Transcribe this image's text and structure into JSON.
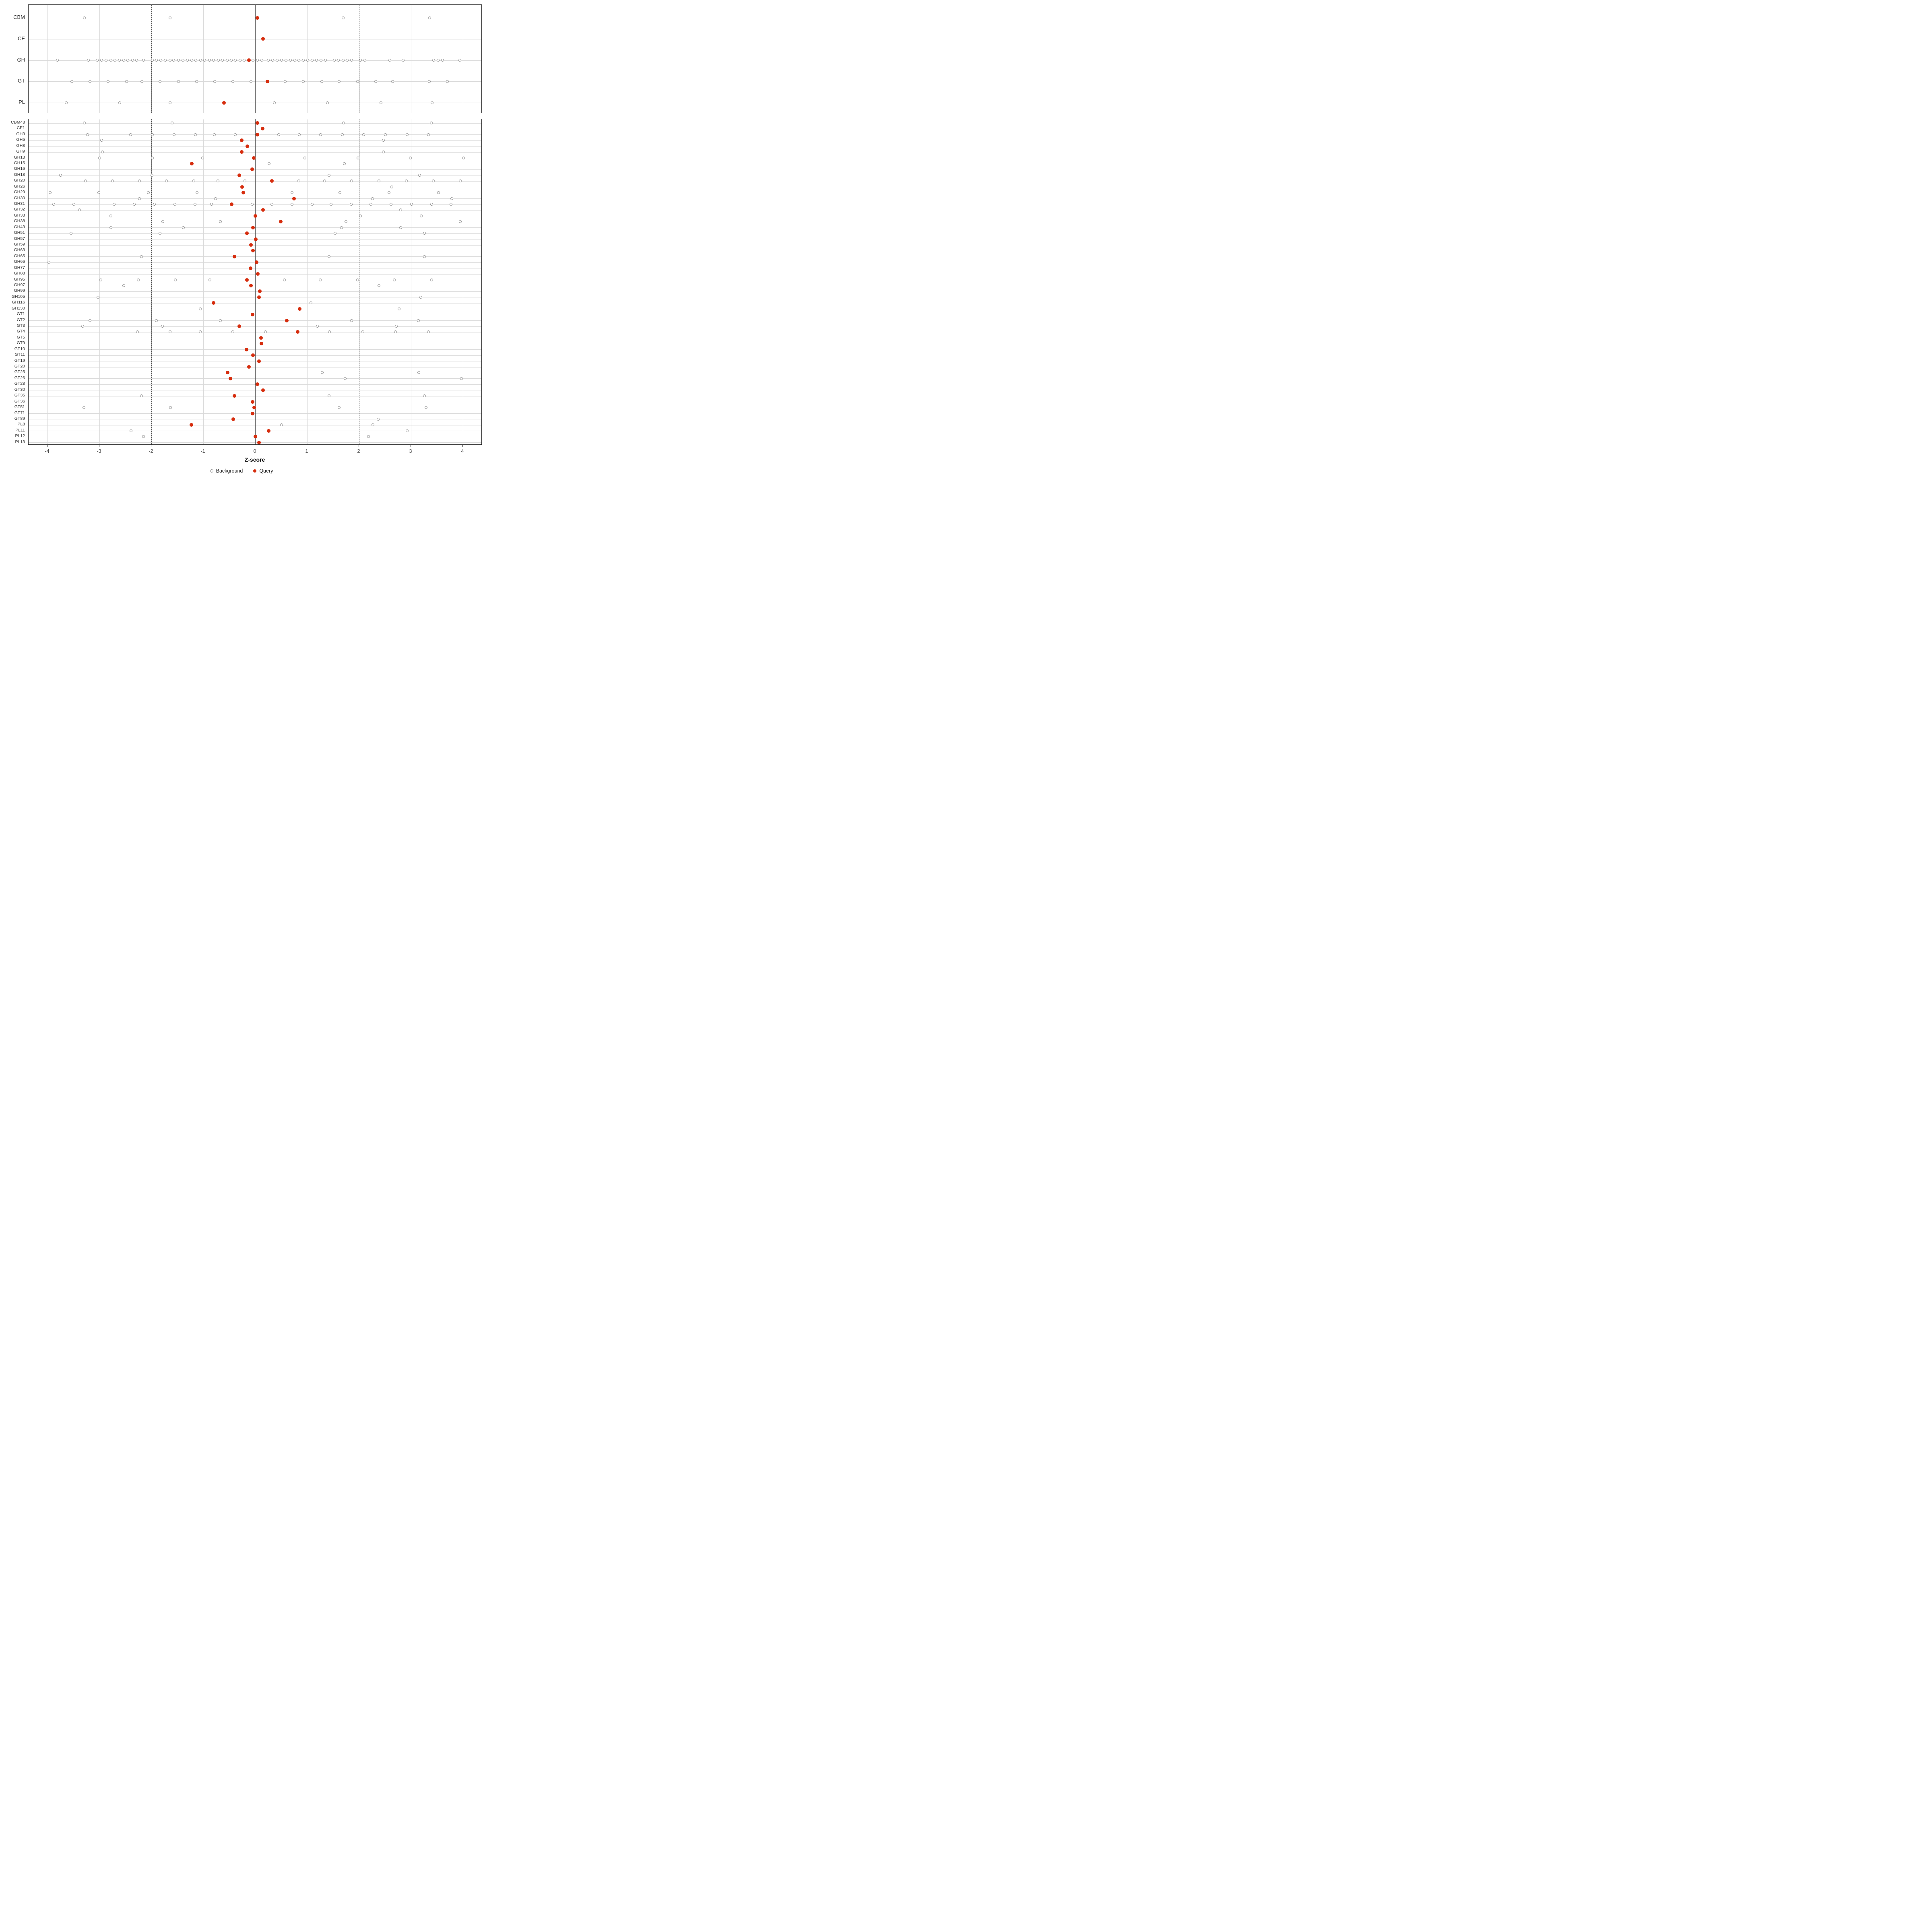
{
  "chart_data": {
    "type": "scatter",
    "title": "",
    "xlabel": "Z-score",
    "ylabel": "",
    "x_ticks": [
      -4,
      -3,
      -2,
      -1,
      0,
      1,
      2,
      3,
      4
    ],
    "xlim": [
      -4.37,
      4.37
    ],
    "grid": true,
    "reference_lines": {
      "solid": [
        0
      ],
      "dashed": [
        -2,
        2
      ]
    },
    "legend_position": "bottom",
    "legend": [
      {
        "label": "Background",
        "marker": "open-circle"
      },
      {
        "label": "Query",
        "marker": "filled-circle"
      }
    ],
    "colors": {
      "query": "#d62d0e",
      "background_stroke": "#8f8f8f",
      "gridline": "#d9d9d9",
      "zero_line": "#595959",
      "dashed_line": "#4a4a4a",
      "panel_border": "#333333",
      "axis_text": "#4a4a4a",
      "label_text": "#2b2b2b"
    },
    "panels": [
      {
        "name": "family-class",
        "rows": [
          {
            "label": "CBM",
            "query": 0.04,
            "background": [
              -3.29,
              -1.64,
              1.69,
              3.36
            ]
          },
          {
            "label": "CE",
            "query": 0.15,
            "background": []
          },
          {
            "label": "GH",
            "query": -0.12,
            "background": [
              -3.81,
              -3.21,
              -3.04,
              -2.96,
              -2.87,
              -2.78,
              -2.7,
              -2.62,
              -2.53,
              -2.45,
              -2.36,
              -2.28,
              -2.15,
              -1.98,
              -1.9,
              -1.82,
              -1.73,
              -1.64,
              -1.57,
              -1.48,
              -1.39,
              -1.31,
              -1.22,
              -1.14,
              -1.05,
              -0.97,
              -0.88,
              -0.8,
              -0.71,
              -0.63,
              -0.54,
              -0.46,
              -0.38,
              -0.29,
              -0.21,
              -0.04,
              0.04,
              0.13,
              0.25,
              0.34,
              0.42,
              0.51,
              0.59,
              0.68,
              0.76,
              0.84,
              0.93,
              1.01,
              1.1,
              1.18,
              1.27,
              1.35,
              1.52,
              1.6,
              1.69,
              1.77,
              1.86,
              2.03,
              2.11,
              2.59,
              2.85,
              3.44,
              3.52,
              3.61,
              3.94
            ]
          },
          {
            "label": "GT",
            "query": 0.24,
            "background": [
              -3.53,
              -3.18,
              -2.83,
              -2.48,
              -2.18,
              -1.83,
              -1.48,
              -1.13,
              -0.78,
              -0.43,
              -0.08,
              0.58,
              0.93,
              1.28,
              1.62,
              1.97,
              2.32,
              2.65,
              3.35,
              3.7
            ]
          },
          {
            "label": "PL",
            "query": -0.6,
            "background": [
              -3.64,
              -2.61,
              -1.64,
              0.37,
              1.39,
              2.42,
              3.41
            ]
          }
        ]
      },
      {
        "name": "family-detail",
        "rows": [
          {
            "label": "CBM48",
            "query": 0.04,
            "background": [
              -3.29,
              -1.6,
              1.7,
              3.39
            ]
          },
          {
            "label": "CE1",
            "query": 0.14,
            "background": []
          },
          {
            "label": "GH3",
            "query": 0.04,
            "background": [
              -3.23,
              -2.4,
              -1.98,
              -1.56,
              -1.15,
              -0.79,
              -0.38,
              0.45,
              0.85,
              1.26,
              1.68,
              2.09,
              2.51,
              2.93,
              3.34
            ]
          },
          {
            "label": "GH5",
            "query": -0.26,
            "background": [
              -2.96,
              2.47
            ]
          },
          {
            "label": "GH8",
            "query": -0.15,
            "background": []
          },
          {
            "label": "GH9",
            "query": -0.26,
            "background": [
              -2.94,
              2.47
            ]
          },
          {
            "label": "GH13",
            "query": -0.03,
            "background": [
              -3.0,
              -1.98,
              -1.01,
              0.96,
              1.98,
              2.99,
              4.01
            ]
          },
          {
            "label": "GH15",
            "query": -1.22,
            "background": [
              0.27,
              1.72
            ]
          },
          {
            "label": "GH16",
            "query": -0.06,
            "background": []
          },
          {
            "label": "GH18",
            "query": -0.31,
            "background": [
              -3.75,
              -1.99,
              1.42,
              3.17
            ]
          },
          {
            "label": "GH20",
            "query": 0.32,
            "background": [
              -3.27,
              -2.75,
              -2.23,
              -1.71,
              -1.18,
              -0.72,
              -0.2,
              0.84,
              1.34,
              1.86,
              2.38,
              2.91,
              3.43,
              3.95
            ]
          },
          {
            "label": "GH26",
            "query": -0.25,
            "background": [
              2.63
            ]
          },
          {
            "label": "GH29",
            "query": -0.23,
            "background": [
              -3.95,
              -3.01,
              -2.06,
              -1.12,
              0.71,
              1.63,
              2.58,
              3.53
            ]
          },
          {
            "label": "GH30",
            "query": 0.75,
            "background": [
              -2.23,
              -0.76,
              2.26,
              3.79
            ]
          },
          {
            "label": "GH31",
            "query": -0.45,
            "background": [
              -3.88,
              -3.49,
              -2.72,
              -2.33,
              -1.94,
              -1.55,
              -1.16,
              -0.84,
              -0.06,
              0.32,
              0.71,
              1.1,
              1.46,
              1.85,
              2.23,
              2.62,
              3.01,
              3.4,
              3.77
            ]
          },
          {
            "label": "GH32",
            "query": 0.15,
            "background": [
              -3.38,
              2.8
            ]
          },
          {
            "label": "GH33",
            "query": 0.0,
            "background": [
              -2.78,
              2.03,
              3.2
            ]
          },
          {
            "label": "GH38",
            "query": 0.49,
            "background": [
              -1.78,
              -0.67,
              1.75,
              3.95
            ]
          },
          {
            "label": "GH43",
            "query": -0.04,
            "background": [
              -2.78,
              -1.38,
              1.66,
              2.8
            ]
          },
          {
            "label": "GH51",
            "query": -0.16,
            "background": [
              -3.55,
              -1.83,
              1.54,
              3.26
            ]
          },
          {
            "label": "GH57",
            "query": 0.01,
            "background": []
          },
          {
            "label": "GH59",
            "query": -0.08,
            "background": []
          },
          {
            "label": "GH63",
            "query": -0.04,
            "background": []
          },
          {
            "label": "GH65",
            "query": -0.4,
            "background": [
              -2.19,
              1.42,
              3.26
            ]
          },
          {
            "label": "GH66",
            "query": 0.03,
            "background": [
              -3.97
            ]
          },
          {
            "label": "GH77",
            "query": -0.09,
            "background": []
          },
          {
            "label": "GH88",
            "query": 0.05,
            "background": []
          },
          {
            "label": "GH95",
            "query": -0.16,
            "background": [
              -2.97,
              -2.25,
              -1.54,
              -0.87,
              0.56,
              1.25,
              1.97,
              2.68,
              3.4
            ]
          },
          {
            "label": "GH97",
            "query": -0.08,
            "background": [
              -2.53,
              2.38
            ]
          },
          {
            "label": "GH99",
            "query": 0.09,
            "background": []
          },
          {
            "label": "GH105",
            "query": 0.07,
            "background": [
              -3.03,
              3.19
            ]
          },
          {
            "label": "GH116",
            "query": -0.8,
            "background": [
              1.07
            ]
          },
          {
            "label": "GH130",
            "query": 0.86,
            "background": [
              -1.06,
              2.77
            ]
          },
          {
            "label": "GT1",
            "query": -0.05,
            "background": []
          },
          {
            "label": "GT2",
            "query": 0.61,
            "background": [
              -3.18,
              -1.9,
              -0.67,
              1.86,
              3.14
            ]
          },
          {
            "label": "GT3",
            "query": -0.31,
            "background": [
              -3.32,
              -1.79,
              1.2,
              2.72
            ]
          },
          {
            "label": "GT4",
            "query": 0.82,
            "background": [
              -2.27,
              -1.64,
              -1.06,
              -0.43,
              0.2,
              1.43,
              2.07,
              2.7,
              3.34
            ]
          },
          {
            "label": "GT5",
            "query": 0.11,
            "background": []
          },
          {
            "label": "GT9",
            "query": 0.12,
            "background": []
          },
          {
            "label": "GT10",
            "query": -0.17,
            "background": []
          },
          {
            "label": "GT11",
            "query": -0.04,
            "background": []
          },
          {
            "label": "GT19",
            "query": 0.07,
            "background": []
          },
          {
            "label": "GT20",
            "query": -0.12,
            "background": []
          },
          {
            "label": "GT25",
            "query": -0.53,
            "background": [
              1.29,
              3.15
            ]
          },
          {
            "label": "GT26",
            "query": -0.48,
            "background": [
              1.73,
              3.97
            ]
          },
          {
            "label": "GT28",
            "query": 0.04,
            "background": []
          },
          {
            "label": "GT30",
            "query": 0.15,
            "background": []
          },
          {
            "label": "GT35",
            "query": -0.4,
            "background": [
              -2.19,
              1.42,
              3.26
            ]
          },
          {
            "label": "GT36",
            "query": -0.05,
            "background": []
          },
          {
            "label": "GT51",
            "query": -0.02,
            "background": [
              -3.3,
              -1.63,
              1.62,
              3.29
            ]
          },
          {
            "label": "GT71",
            "query": -0.05,
            "background": []
          },
          {
            "label": "GT89",
            "query": -0.42,
            "background": [
              2.37
            ]
          },
          {
            "label": "PL8",
            "query": -1.23,
            "background": [
              0.51,
              2.27
            ]
          },
          {
            "label": "PL11",
            "query": 0.26,
            "background": [
              -2.39,
              2.93
            ]
          },
          {
            "label": "PL12",
            "query": 0.0,
            "background": [
              -2.15,
              2.18
            ]
          },
          {
            "label": "PL13",
            "query": 0.07,
            "background": []
          }
        ]
      }
    ]
  }
}
